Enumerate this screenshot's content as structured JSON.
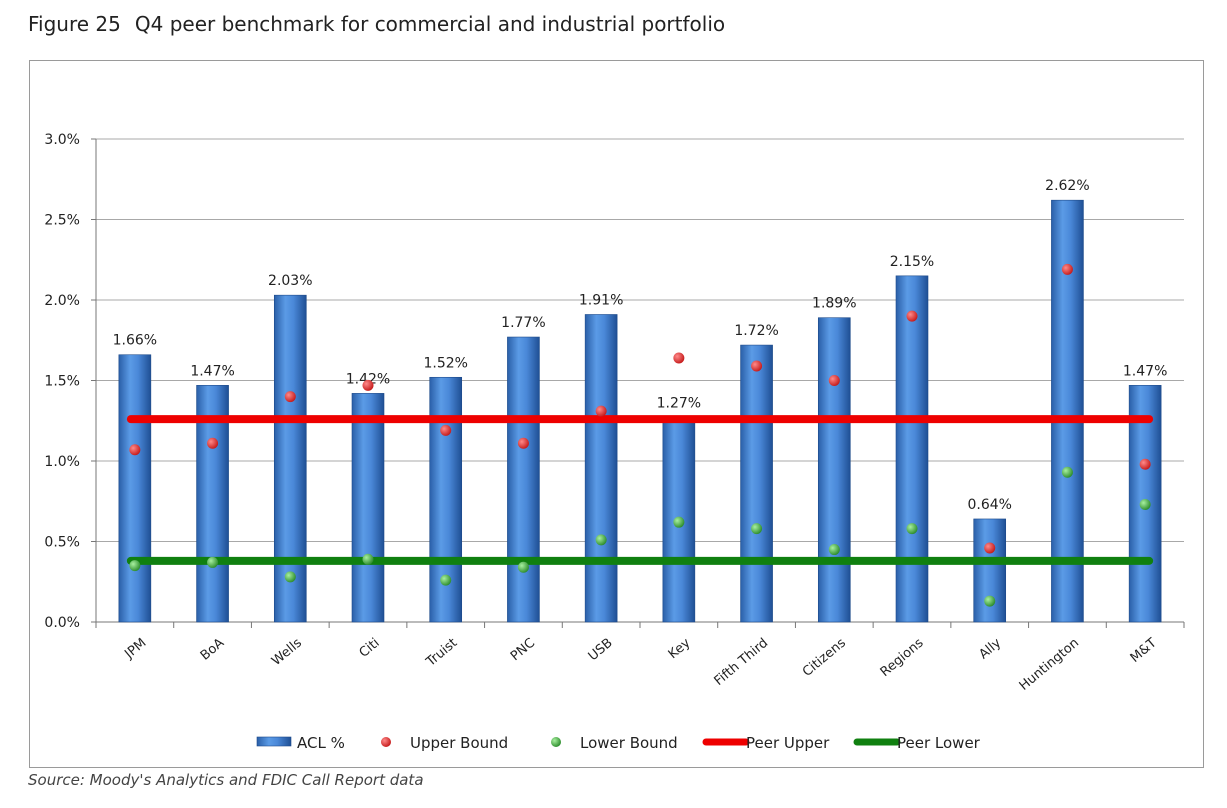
{
  "figure": {
    "number": "Figure 25",
    "title": "Q4 peer benchmark for commercial and industrial portfolio",
    "source": "Source: Moody's Analytics and FDIC Call Report data"
  },
  "chart_data": {
    "type": "bar",
    "categories": [
      "JPM",
      "BoA",
      "Wells",
      "Citi",
      "Truist",
      "PNC",
      "USB",
      "Key",
      "Fifth Third",
      "Citizens",
      "Regions",
      "Ally",
      "Huntington",
      "M&T"
    ],
    "series": [
      {
        "name": "ACL %",
        "kind": "bar",
        "color": "#3f7fd0",
        "values": [
          1.66,
          1.47,
          2.03,
          1.42,
          1.52,
          1.77,
          1.91,
          1.27,
          1.72,
          1.89,
          2.15,
          0.64,
          2.62,
          1.47
        ],
        "labels": [
          "1.66%",
          "1.47%",
          "2.03%",
          "1.42%",
          "1.52%",
          "1.77%",
          "1.91%",
          "1.27%",
          "1.72%",
          "1.89%",
          "2.15%",
          "0.64%",
          "2.62%",
          "1.47%"
        ]
      },
      {
        "name": "Upper Bound",
        "kind": "point",
        "color": "#d42020",
        "values": [
          1.07,
          1.11,
          1.4,
          1.47,
          1.19,
          1.11,
          1.31,
          1.64,
          1.59,
          1.5,
          1.9,
          0.46,
          2.19,
          0.98
        ]
      },
      {
        "name": "Lower Bound",
        "kind": "point",
        "color": "#2e9e2e",
        "values": [
          0.35,
          0.37,
          0.28,
          0.39,
          0.26,
          0.34,
          0.51,
          0.62,
          0.58,
          0.45,
          0.58,
          0.13,
          0.93,
          0.73
        ]
      },
      {
        "name": "Peer Upper",
        "kind": "hline",
        "color": "#ee0000",
        "value": 1.26
      },
      {
        "name": "Peer Lower",
        "kind": "hline",
        "color": "#108010",
        "value": 0.38
      }
    ],
    "yticks": [
      "0.0%",
      "0.5%",
      "1.0%",
      "1.5%",
      "2.0%",
      "2.5%",
      "3.0%"
    ],
    "ylim": [
      0,
      3.0
    ],
    "grid": true,
    "legend_position": "bottom"
  }
}
